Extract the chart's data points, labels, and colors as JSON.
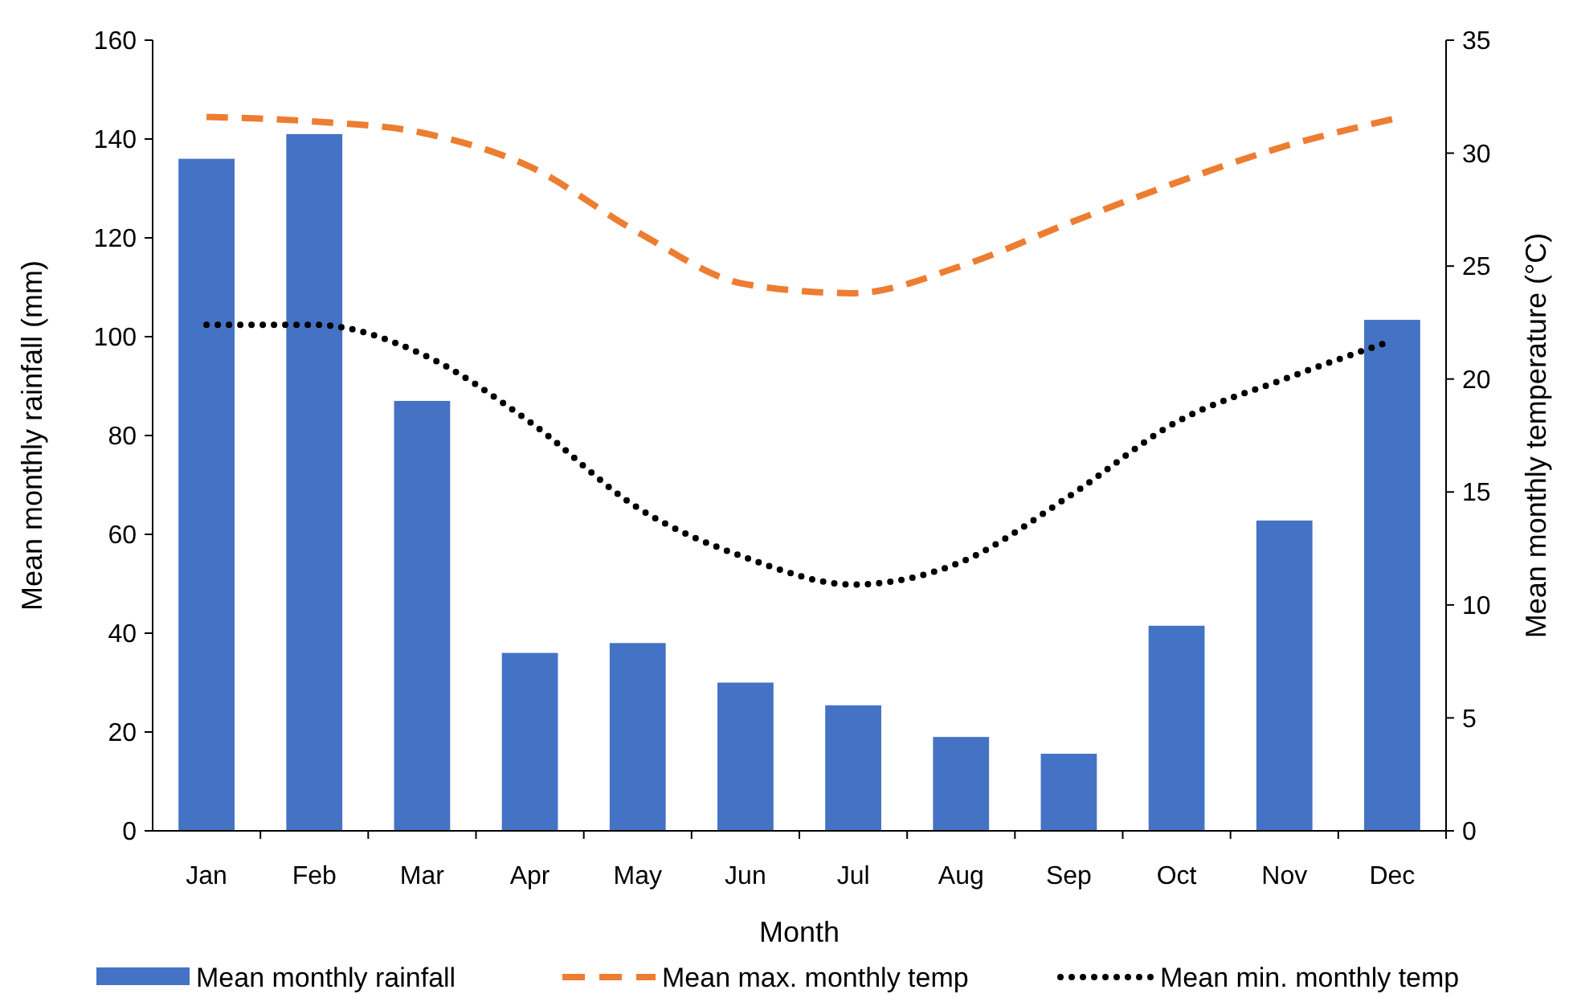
{
  "chart_data": {
    "type": "bar",
    "xlabel": "Month",
    "ylabel": "Mean monthly rainfall (mm)",
    "y2label": "Mean monthly temperature (°C)",
    "categories": [
      "Jan",
      "Feb",
      "Mar",
      "Apr",
      "May",
      "Jun",
      "Jul",
      "Aug",
      "Sep",
      "Oct",
      "Nov",
      "Dec"
    ],
    "series": [
      {
        "name": "Mean monthly rainfall",
        "color": "#4472c4",
        "values": [
          136,
          141,
          87,
          36,
          38,
          30,
          25.4,
          19,
          15.6,
          41.5,
          62.8,
          103.4
        ]
      },
      {
        "name": "Mean max. monthly temp",
        "type": "line",
        "axis": "y2",
        "line_style": "dashed",
        "color": "#ed7d31",
        "values": [
          31.6,
          31.4,
          30.9,
          29.4,
          26.5,
          24.2,
          23.8,
          25.0,
          26.9,
          28.7,
          30.3,
          31.5
        ]
      },
      {
        "name": "Mean min. monthly temp",
        "type": "line",
        "axis": "y2",
        "line_style": "dotted",
        "color": "#000000",
        "values": [
          22.4,
          22.4,
          21.1,
          18.1,
          14.3,
          12.1,
          10.9,
          11.9,
          14.8,
          18.1,
          20.0,
          21.7
        ]
      }
    ],
    "ylim": [
      0,
      160
    ],
    "yticks": [
      0,
      20,
      40,
      60,
      80,
      100,
      120,
      140,
      160
    ],
    "y2lim": [
      0,
      35
    ],
    "y2ticks": [
      0,
      5,
      10,
      15,
      20,
      25,
      30,
      35
    ],
    "legend": "bottom"
  }
}
